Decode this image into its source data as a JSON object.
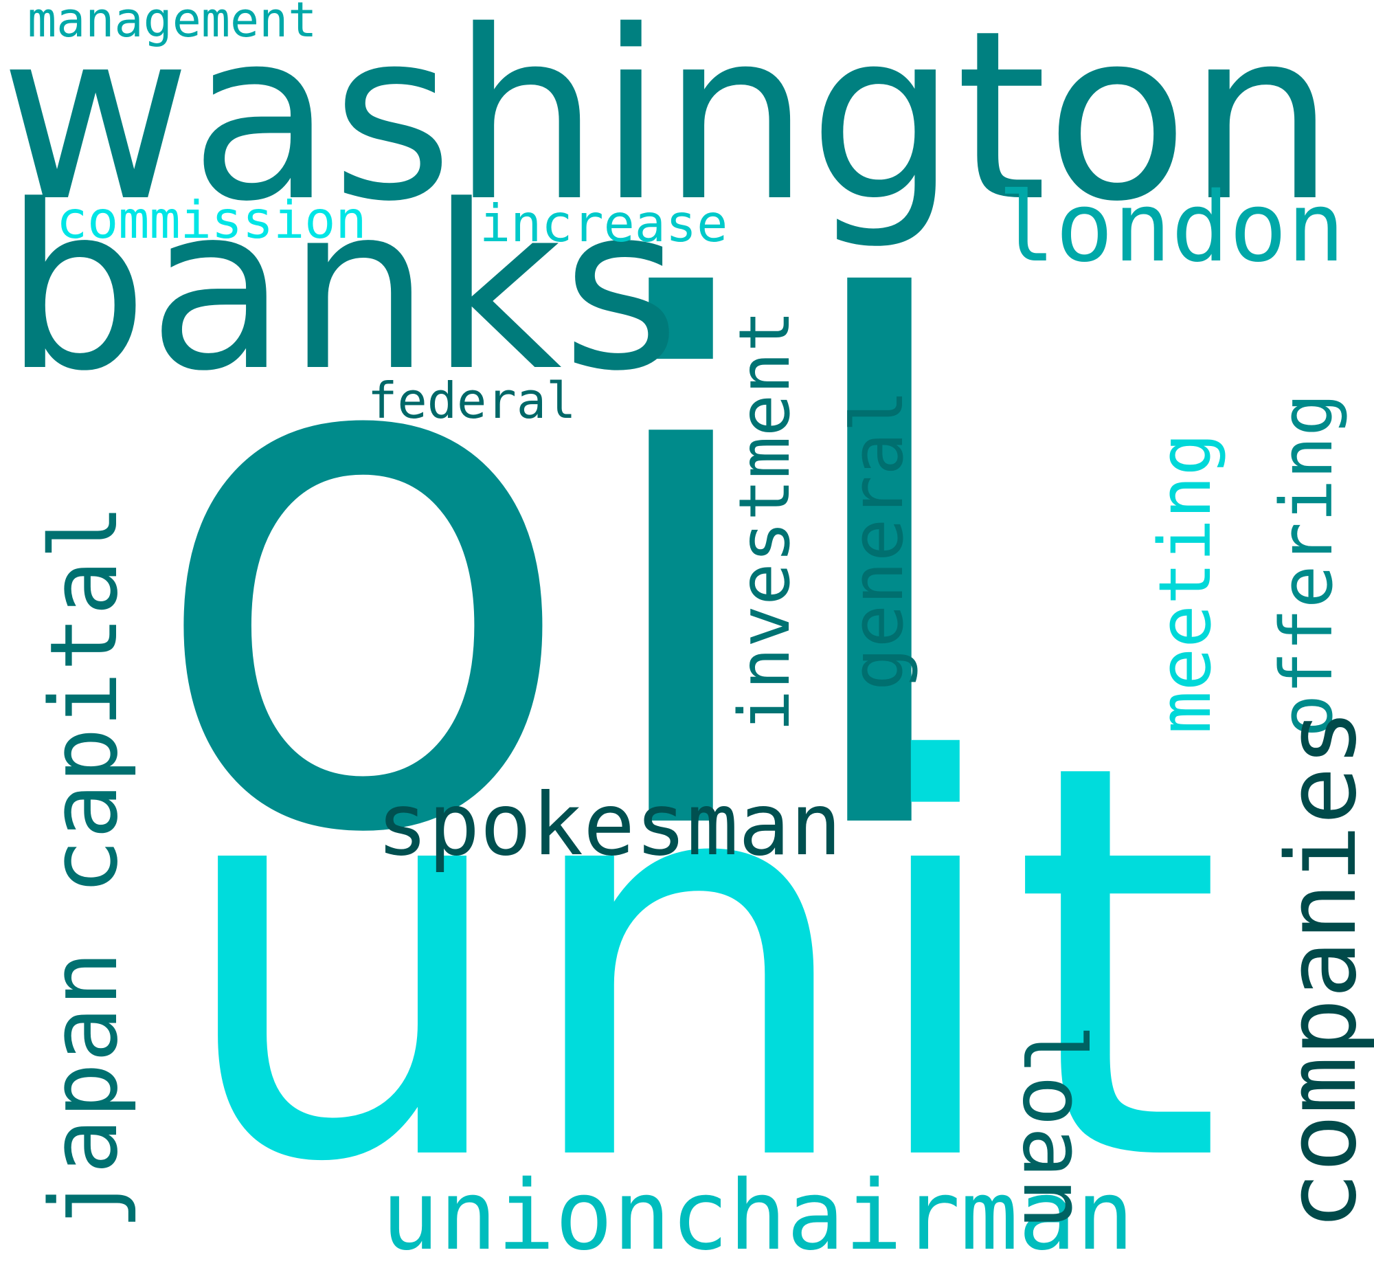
{
  "words": {
    "oil": {
      "text": "oil",
      "color": "#008b8b"
    },
    "unit": {
      "text": "unit",
      "color": "#00dcdc"
    },
    "washington": {
      "text": "washington",
      "color": "#008080"
    },
    "banks": {
      "text": "banks",
      "color": "#007b7b"
    },
    "management": {
      "text": "management",
      "color": "#00a8a8"
    },
    "commission": {
      "text": "commission",
      "color": "#00e5e5"
    },
    "increase": {
      "text": "increase",
      "color": "#00c9c9"
    },
    "federal": {
      "text": "federal",
      "color": "#006868"
    },
    "london": {
      "text": "london",
      "color": "#00a8a8"
    },
    "spokesman": {
      "text": "spokesman",
      "color": "#005050"
    },
    "unionchairman": {
      "text": "unionchairman",
      "color": "#00bdbd"
    },
    "investment": {
      "text": "investment",
      "color": "#007373"
    },
    "general": {
      "text": "general",
      "color": "#006f6f"
    },
    "meeting": {
      "text": "meeting",
      "color": "#00d8d8"
    },
    "offering": {
      "text": "offering",
      "color": "#008a8a"
    },
    "companies": {
      "text": "companies",
      "color": "#004a4a"
    },
    "japan_capital": {
      "text": "japan capital",
      "color": "#007070"
    },
    "loan": {
      "text": "loan",
      "color": "#006262"
    }
  }
}
